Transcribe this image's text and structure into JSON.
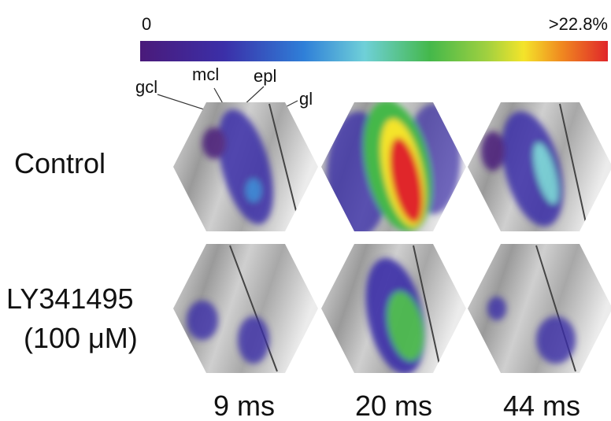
{
  "colorbar": {
    "min_label": "0",
    "max_label": ">22.8%"
  },
  "layer_labels": [
    "gcl",
    "mcl",
    "epl",
    "gl"
  ],
  "row_labels": {
    "control": "Control",
    "drug_line1": "LY341495",
    "drug_line2": "(100 μM)"
  },
  "time_labels": [
    "9 ms",
    "20 ms",
    "44 ms"
  ]
}
